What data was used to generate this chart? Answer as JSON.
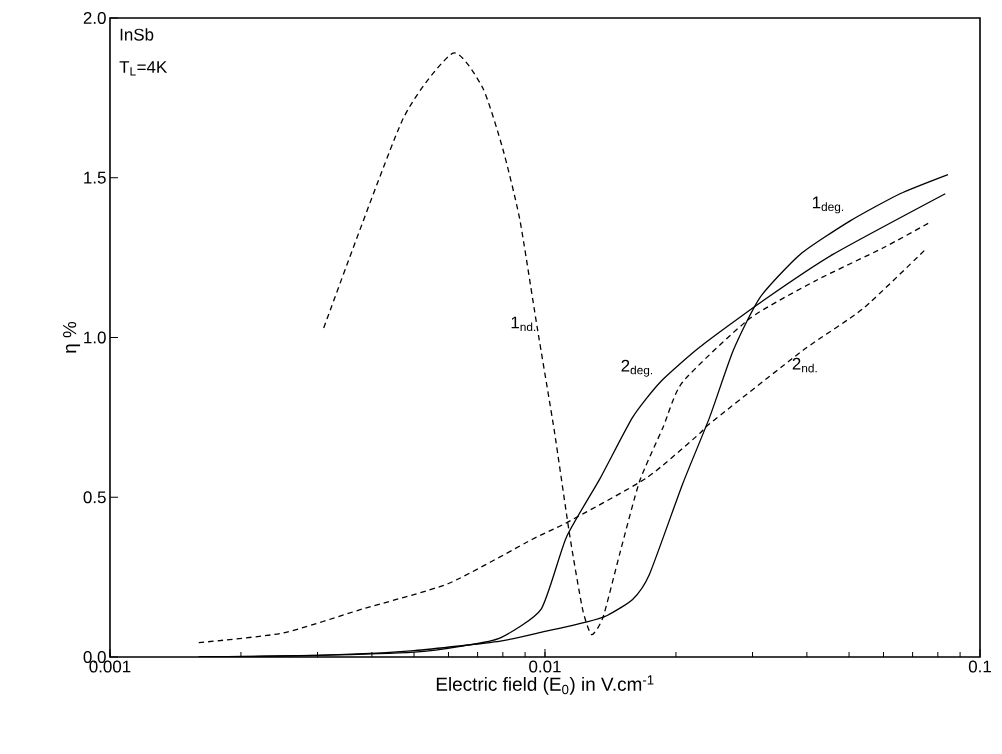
{
  "chart_data": {
    "type": "line",
    "xlabel": "Electric field (E$_{0}$) in V.cm$^{-1}$",
    "ylabel": "η %",
    "annotations": [
      "InSb",
      "T$_{L}$=4K"
    ],
    "log": "x",
    "xlim": [
      0.001,
      0.1
    ],
    "xticks": [
      0.001,
      0.01,
      0.1
    ],
    "ylim": [
      0,
      2.0
    ],
    "yticks": [
      {
        "value": 0,
        "label": "0.0"
      },
      {
        "value": 0.5,
        "label": "0.5"
      },
      {
        "value": 1,
        "label": "1.0"
      },
      {
        "value": 1.5,
        "label": "1.5"
      },
      {
        "value": 2,
        "label": "2.0"
      }
    ],
    "grid": false,
    "marker": "none",
    "series": [
      {
        "name": "1$_{nd.}$",
        "color": "#000000",
        "line_style": "dashed",
        "x": [
          0.0031,
          0.0047,
          0.00615,
          0.0072,
          0.008,
          0.00875,
          0.0096,
          0.0105,
          0.0114,
          0.0122,
          0.0128,
          0.0136,
          0.0149,
          0.0165,
          0.0187,
          0.0207,
          0.0296,
          0.0422,
          0.0598,
          0.0767
        ],
        "values": [
          1.03,
          1.68,
          1.89,
          1.78,
          1.59,
          1.37,
          1.03,
          0.71,
          0.38,
          0.15,
          0.07,
          0.125,
          0.33,
          0.55,
          0.72,
          0.86,
          1.06,
          1.18,
          1.28,
          1.36
        ]
      },
      {
        "name": "2$_{nd.}$",
        "color": "#000000",
        "line_style": "dashed",
        "x": [
          0.0016,
          0.0025,
          0.0038,
          0.006,
          0.0094,
          0.0112,
          0.0171,
          0.0227,
          0.0239,
          0.0392,
          0.0538,
          0.0755
        ],
        "values": [
          0.045,
          0.075,
          0.15,
          0.23,
          0.37,
          0.42,
          0.56,
          0.7,
          0.73,
          0.96,
          1.09,
          1.28
        ]
      },
      {
        "name": "1$_{deg.}$",
        "color": "#000000",
        "line_style": "solid",
        "x": [
          0.0016,
          0.003,
          0.005,
          0.0079,
          0.01,
          0.0125,
          0.0139,
          0.0159,
          0.0174,
          0.0207,
          0.0239,
          0.0271,
          0.0312,
          0.0386,
          0.0503,
          0.0655,
          0.0844
        ],
        "values": [
          0.0,
          0.005,
          0.02,
          0.05,
          0.08,
          0.11,
          0.13,
          0.18,
          0.26,
          0.54,
          0.75,
          0.96,
          1.125,
          1.26,
          1.365,
          1.45,
          1.51
        ]
      },
      {
        "name": "2$_{deg.}$",
        "color": "#000000",
        "line_style": "solid",
        "x": [
          0.0016,
          0.003,
          0.005,
          0.0065,
          0.0079,
          0.0098,
          0.0112,
          0.0134,
          0.0159,
          0.0184,
          0.0227,
          0.0317,
          0.0459,
          0.0832
        ],
        "values": [
          0.0,
          0.005,
          0.015,
          0.035,
          0.06,
          0.15,
          0.375,
          0.56,
          0.75,
          0.86,
          0.97,
          1.115,
          1.26,
          1.45
        ]
      }
    ]
  }
}
